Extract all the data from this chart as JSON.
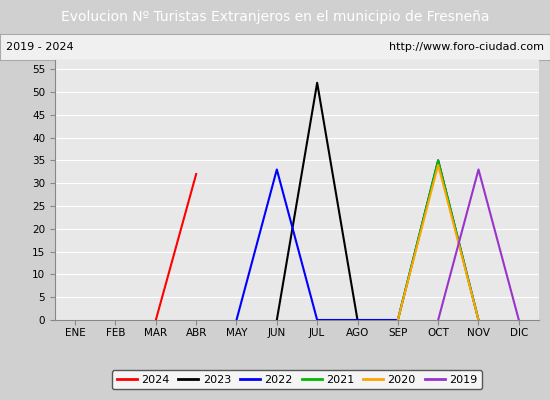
{
  "title": "Evolucion Nº Turistas Extranjeros en el municipio de Fresneña",
  "subtitle_left": "2019 - 2024",
  "subtitle_right": "http://www.foro-ciudad.com",
  "title_bg_color": "#4472c4",
  "title_fg_color": "#ffffff",
  "plot_bg_color": "#e8e8e8",
  "grid_color": "#ffffff",
  "months": [
    "ENE",
    "FEB",
    "MAR",
    "ABR",
    "MAY",
    "JUN",
    "JUL",
    "AGO",
    "SEP",
    "OCT",
    "NOV",
    "DIC"
  ],
  "ylim": [
    0,
    57
  ],
  "yticks": [
    0,
    5,
    10,
    15,
    20,
    25,
    30,
    35,
    40,
    45,
    50,
    55
  ],
  "series": {
    "2024": {
      "color": "#ff0000",
      "data": [
        [
          2,
          0
        ],
        [
          3,
          32
        ]
      ]
    },
    "2023": {
      "color": "#000000",
      "data": [
        [
          5,
          0
        ],
        [
          6,
          52
        ],
        [
          7,
          0
        ]
      ]
    },
    "2022": {
      "color": "#0000ff",
      "data": [
        [
          4,
          0
        ],
        [
          5,
          33
        ],
        [
          6,
          0
        ],
        [
          8,
          0
        ],
        [
          9,
          35
        ],
        [
          10,
          0
        ]
      ]
    },
    "2021": {
      "color": "#00bb00",
      "data": [
        [
          8,
          0
        ],
        [
          9,
          35
        ],
        [
          10,
          0
        ]
      ]
    },
    "2020": {
      "color": "#ffa500",
      "data": [
        [
          8,
          0
        ],
        [
          9,
          34
        ],
        [
          10,
          0
        ]
      ]
    },
    "2019": {
      "color": "#9933cc",
      "data": [
        [
          9,
          0
        ],
        [
          10,
          33
        ],
        [
          11,
          0
        ]
      ]
    }
  },
  "legend_order": [
    "2024",
    "2023",
    "2022",
    "2021",
    "2020",
    "2019"
  ],
  "figsize": [
    5.5,
    4.0
  ],
  "dpi": 100
}
